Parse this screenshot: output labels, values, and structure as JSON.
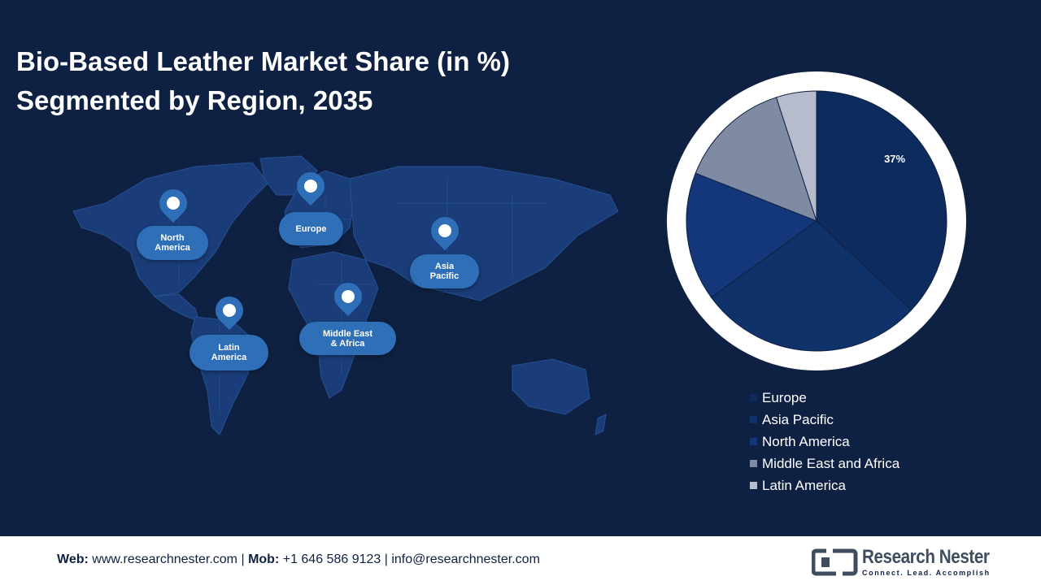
{
  "header": {
    "title_line1": "Bio-Based Leather Market Share (in %)",
    "title_line2": "Segmented by Region, 2035"
  },
  "map": {
    "regions": [
      {
        "id": "north-america",
        "label": [
          "North",
          "America"
        ]
      },
      {
        "id": "europe",
        "label": [
          "Europe"
        ]
      },
      {
        "id": "asia-pacific",
        "label": [
          "Asia",
          "Pacific"
        ]
      },
      {
        "id": "latin-america",
        "label": [
          "Latin",
          "America"
        ]
      },
      {
        "id": "middle-east-africa",
        "label": [
          "Middle East",
          "& Africa"
        ]
      }
    ]
  },
  "chart_data": {
    "type": "pie",
    "title": "Bio-Based Leather Market Share (in %) Segmented by Region, 2035",
    "categories": [
      "Europe",
      "Asia Pacific",
      "North America",
      "Middle East and Africa",
      "Latin America"
    ],
    "values": [
      37,
      28,
      16,
      14,
      5
    ],
    "data_labels": [
      "37%",
      "",
      "",
      "",
      ""
    ],
    "colors": [
      "#0d2b5c",
      "#10326a",
      "#13377a",
      "#7f8aa3",
      "#b6bccb"
    ],
    "legend_position": "bottom"
  },
  "footer": {
    "web_label": "Web:",
    "web_value": "www.researchnester.com",
    "sep1": "|",
    "mob_label": "Mob:",
    "mob_value": "+1 646 586 9123",
    "sep2": "|",
    "email": "info@researchnester.com",
    "brand_name": "Research Nester",
    "brand_tagline": "Connect. Lead. Accomplish"
  }
}
